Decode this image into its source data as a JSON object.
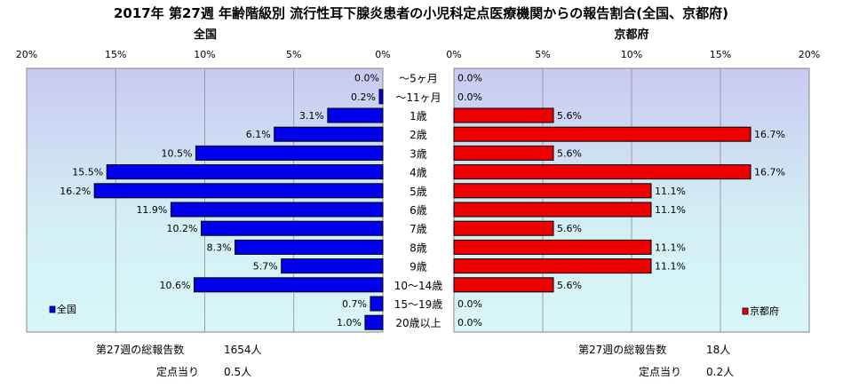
{
  "title": "2017年 第27週 年齢階級別 流行性耳下腺炎患者の小児科定点医療機関からの報告割合(全国、京都府)",
  "chart_data": {
    "type": "bar",
    "orientation": "horizontal",
    "categories": [
      "～5ヶ月",
      "～11ヶ月",
      "1歳",
      "2歳",
      "3歳",
      "4歳",
      "5歳",
      "6歳",
      "7歳",
      "8歳",
      "9歳",
      "10～14歳",
      "15～19歳",
      "20歳以上"
    ],
    "xlim": [
      0,
      20
    ],
    "x_ticks": [
      "20%",
      "15%",
      "10%",
      "5%",
      "0%"
    ],
    "series": [
      {
        "name": "全国",
        "panel_title": "全国",
        "color": "#0000ee",
        "values": [
          0.0,
          0.2,
          3.1,
          6.1,
          10.5,
          15.5,
          16.2,
          11.9,
          10.2,
          8.3,
          5.7,
          10.6,
          0.7,
          1.0
        ],
        "labels": [
          "0.0%",
          "0.2%",
          "3.1%",
          "6.1%",
          "10.5%",
          "15.5%",
          "16.2%",
          "11.9%",
          "10.2%",
          "8.3%",
          "5.7%",
          "10.6%",
          "0.7%",
          "1.0%"
        ],
        "legend": "全国"
      },
      {
        "name": "京都府",
        "panel_title": "京都府",
        "color": "#ee0000",
        "values": [
          0.0,
          0.0,
          5.6,
          16.7,
          5.6,
          16.7,
          11.1,
          11.1,
          5.6,
          11.1,
          11.1,
          5.6,
          0.0,
          0.0
        ],
        "labels": [
          "0.0%",
          "0.0%",
          "5.6%",
          "16.7%",
          "5.6%",
          "16.7%",
          "11.1%",
          "11.1%",
          "5.6%",
          "11.1%",
          "11.1%",
          "5.6%",
          "0.0%",
          "0.0%"
        ],
        "legend": "京都府"
      }
    ],
    "legend_position": "bottom-left / bottom-right",
    "grid": true
  },
  "footer": {
    "left": {
      "total_label": "第27週の総報告数",
      "total_value": "1654人",
      "per_label": "定点当り",
      "per_value": "0.5人"
    },
    "right": {
      "total_label": "第27週の総報告数",
      "total_value": "18人",
      "per_label": "定点当り",
      "per_value": "0.2人"
    }
  }
}
